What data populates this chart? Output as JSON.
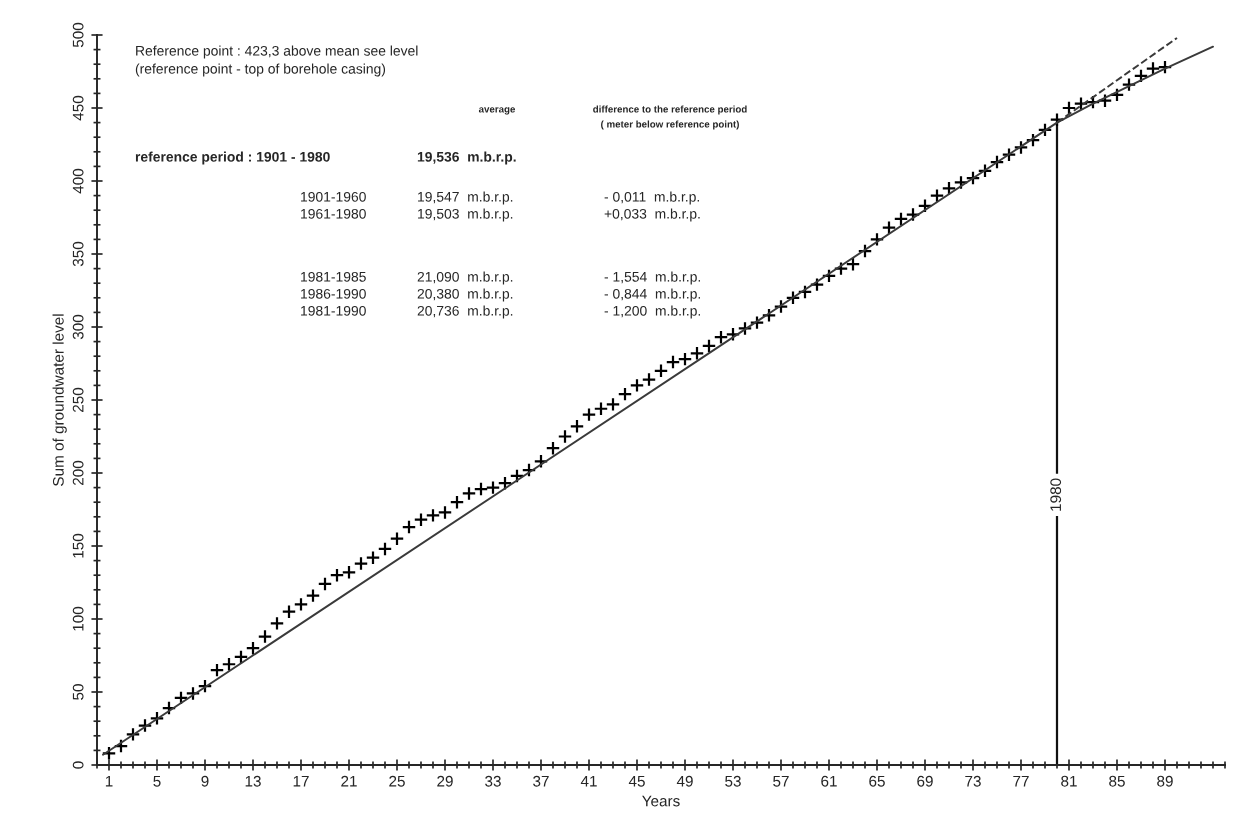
{
  "chart_data": {
    "type": "scatter",
    "xlabel": "Years",
    "ylabel": "Sum of groundwater level",
    "xlim": [
      0,
      94
    ],
    "ylim": [
      0,
      500
    ],
    "xticks": [
      1,
      5,
      9,
      13,
      17,
      21,
      25,
      29,
      33,
      37,
      41,
      45,
      49,
      53,
      57,
      61,
      65,
      69,
      73,
      77,
      81,
      85,
      89
    ],
    "yticks": [
      0,
      50,
      100,
      150,
      200,
      250,
      300,
      350,
      400,
      450,
      500
    ],
    "grid": false,
    "legend": false,
    "series": [
      {
        "color": "#000000",
        "marker": "cross",
        "x": [
          1,
          2,
          3,
          4,
          5,
          6,
          7,
          8,
          9,
          10,
          11,
          12,
          13,
          14,
          15,
          16,
          17,
          18,
          19,
          20,
          21,
          22,
          23,
          24,
          25,
          26,
          27,
          28,
          29,
          30,
          31,
          32,
          33,
          34,
          35,
          36,
          37,
          38,
          39,
          40,
          41,
          42,
          43,
          44,
          45,
          46,
          47,
          48,
          49,
          50,
          51,
          52,
          53,
          54,
          55,
          56,
          57,
          58,
          59,
          60,
          61,
          62,
          63,
          64,
          65,
          66,
          67,
          68,
          69,
          70,
          71,
          72,
          73,
          74,
          75,
          76,
          77,
          78,
          79,
          80,
          81,
          82,
          83,
          84,
          85,
          86,
          87,
          88,
          89
        ],
        "values": [
          8,
          13,
          21,
          27,
          32,
          39,
          46,
          49,
          54,
          65,
          69,
          74,
          80,
          88,
          97,
          105,
          110,
          116,
          124,
          130,
          132,
          138,
          142,
          148,
          155,
          163,
          168,
          171,
          173,
          180,
          186,
          189,
          190,
          193,
          198,
          202,
          208,
          217,
          225,
          232,
          240,
          244,
          247,
          254,
          260,
          264,
          270,
          276,
          278,
          282,
          287,
          293,
          295,
          299,
          303,
          308,
          314,
          320,
          324,
          329,
          335,
          340,
          343,
          352,
          360,
          368,
          374,
          377,
          383,
          390,
          395,
          399,
          402,
          407,
          413,
          418,
          423,
          428,
          435,
          442,
          450,
          453,
          454,
          455,
          459,
          466,
          472,
          477,
          478
        ]
      },
      {
        "type": "line",
        "color": "#3a3a3a",
        "line_style": "solid",
        "x": [
          0.5,
          80,
          83,
          86,
          89,
          93
        ],
        "values": [
          7,
          440,
          453,
          465,
          477,
          492
        ]
      },
      {
        "type": "line",
        "color": "#3a3a3a",
        "line_style": "dashed",
        "x": [
          80,
          90
        ],
        "values": [
          440,
          498
        ]
      }
    ],
    "ref_lines": [
      {
        "axis": "x",
        "value": 80,
        "color": "#111111"
      }
    ],
    "annotations": [
      "Reference point : 423,3 above mean see level",
      "(reference point - top of borehole casing)",
      "average",
      "difference to the reference period",
      "( meter below reference point)",
      "reference period : 1901 - 1980",
      "19,536  m.b.r.p.",
      "1901-1960",
      "19,547  m.b.r.p.",
      "- 0,011  m.b.r.p.",
      "1961-1980",
      "19,503  m.b.r.p.",
      "+0,033  m.b.r.p.",
      "1981-1985",
      "21,090  m.b.r.p.",
      "- 1,554  m.b.r.p.",
      "1986-1990",
      "20,380  m.b.r.p.",
      "- 0,844  m.b.r.p.",
      "1981-1990",
      "20,736  m.b.r.p.",
      "- 1,200  m.b.r.p.",
      {
        "text": "1980",
        "x": 80,
        "y": 185
      }
    ]
  }
}
